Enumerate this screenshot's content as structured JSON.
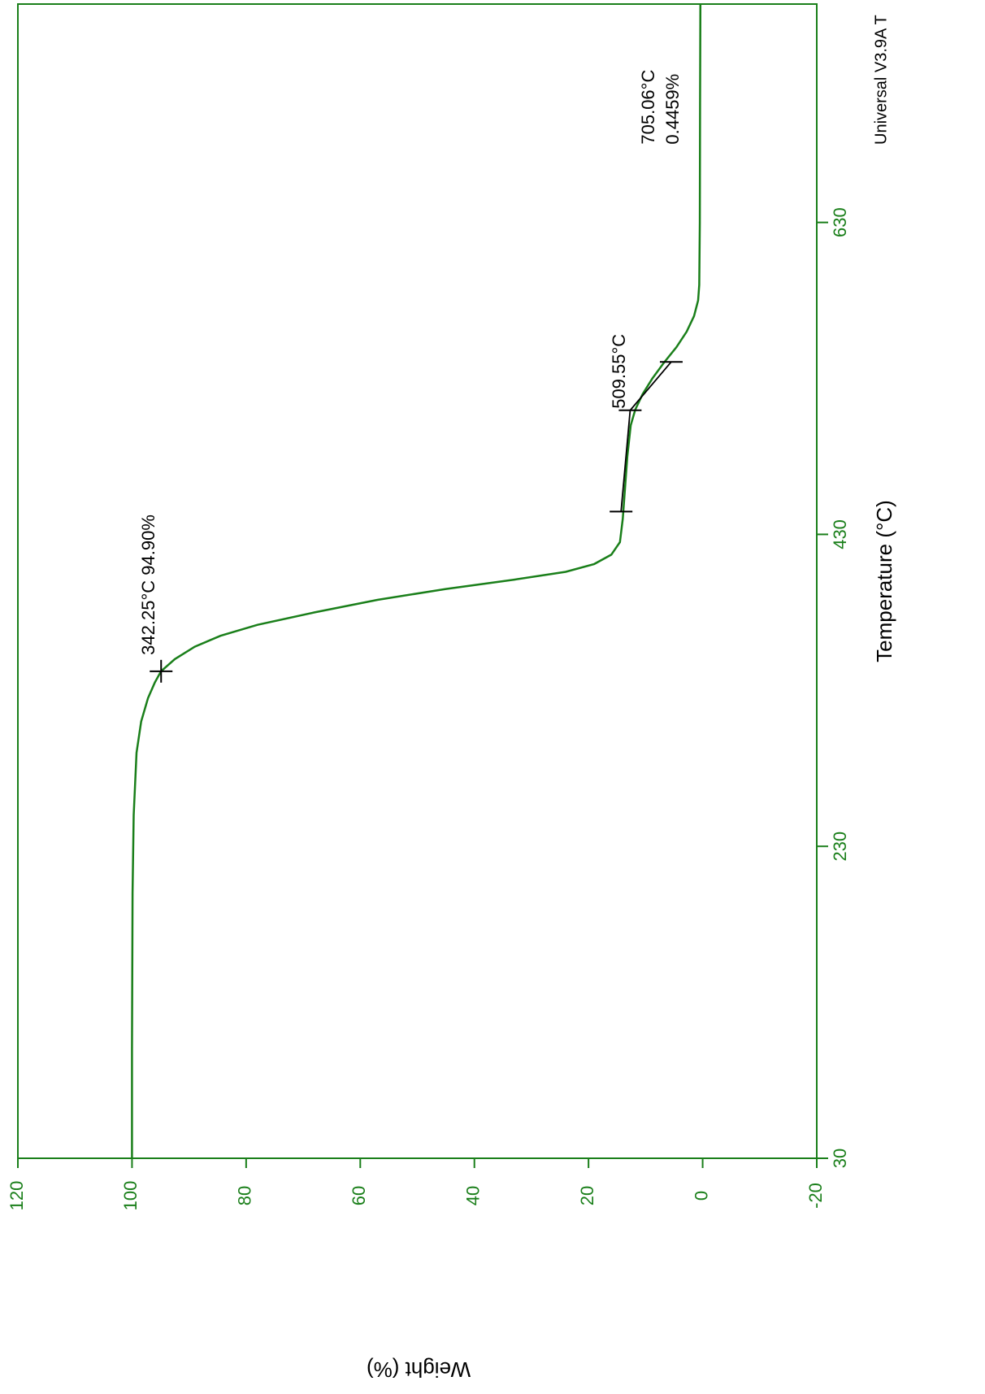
{
  "chart_data": {
    "type": "line",
    "x_label": "Temperature (°C)",
    "y_label": "Weight (%)",
    "x": [
      30,
      100,
      200,
      250,
      290,
      310,
      325,
      335,
      342.25,
      350,
      358,
      365,
      372,
      380,
      388,
      395,
      401,
      406,
      411,
      417,
      425,
      440,
      460,
      480,
      500,
      510,
      520,
      530,
      540,
      550,
      560,
      570,
      580,
      590,
      630,
      705.06,
      770
    ],
    "series": [
      {
        "name": "Weight",
        "color": "#1a7f1a",
        "values": [
          100,
          100,
          99.9,
          99.7,
          99.2,
          98.4,
          97.2,
          96,
          94.9,
          92.5,
          89,
          84.5,
          78,
          68,
          57,
          45,
          33,
          24,
          19,
          16,
          14.5,
          14,
          13.6,
          13.2,
          12.6,
          11.8,
          10.5,
          8.8,
          6.8,
          4.6,
          2.8,
          1.5,
          0.8,
          0.6,
          0.5,
          0.4459,
          0.4
        ]
      }
    ],
    "xlim": [
      30,
      770
    ],
    "xticks": [
      30,
      230,
      430,
      630
    ],
    "ylim": [
      -20,
      120
    ],
    "yticks": [
      -20,
      0,
      20,
      40,
      60,
      80,
      100,
      120
    ],
    "annotations": [
      {
        "text": "342.25°C 94.90%",
        "x": 342.25,
        "y": 94.9
      },
      {
        "text": "509.55°C",
        "x": 509.55,
        "y": 12.7
      },
      {
        "lines": [
          "705.06°C",
          "0.4459%"
        ],
        "x": 705.06,
        "y": 0.4459
      }
    ],
    "tangent": {
      "x": [
        444.6,
        509.55,
        540.6
      ],
      "y": [
        14.3,
        12.7,
        5.5
      ]
    },
    "footer": "Universal V3.9A T",
    "axis_color": "#1a7f1a",
    "annotation_color": "#000000"
  }
}
